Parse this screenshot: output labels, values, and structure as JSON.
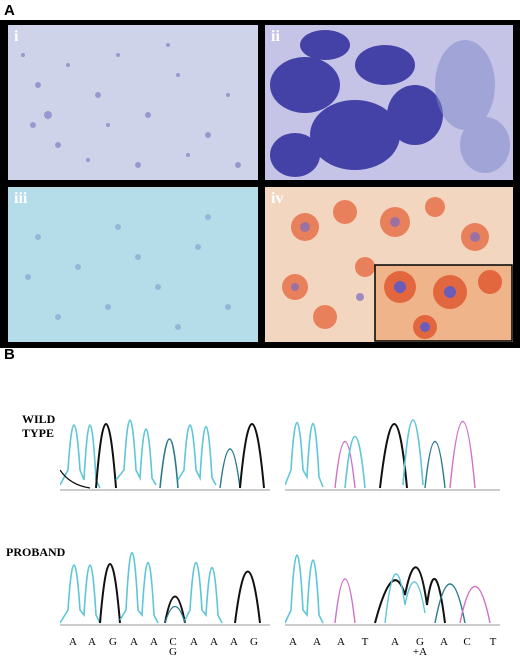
{
  "figure": {
    "panel_a_label": "A",
    "panel_b_label": "B",
    "tiles": [
      {
        "numeral": "i",
        "color": "#c9cfe8"
      },
      {
        "numeral": "ii",
        "color": "#3f3fb0"
      },
      {
        "numeral": "iii",
        "color": "#b6dce8"
      },
      {
        "numeral": "iv",
        "color": "#f0c0a0"
      }
    ],
    "rows": [
      {
        "label_line1": "WILD",
        "label_line2": "TYPE"
      },
      {
        "label_line1": "PROBAND",
        "label_line2": ""
      }
    ],
    "left_bases": [
      "A",
      "A",
      "G",
      "A",
      "A",
      "C",
      "A",
      "A",
      "A",
      "G"
    ],
    "left_sub": "G",
    "right_bases": [
      "A",
      "A",
      "A",
      "T",
      "A",
      "G",
      "A",
      "C",
      "T"
    ],
    "right_sub": "+A",
    "trace_colors": {
      "a": "#5fc6d8",
      "g": "#111111",
      "c": "#2b7a8a",
      "t": "#d070c8"
    }
  }
}
